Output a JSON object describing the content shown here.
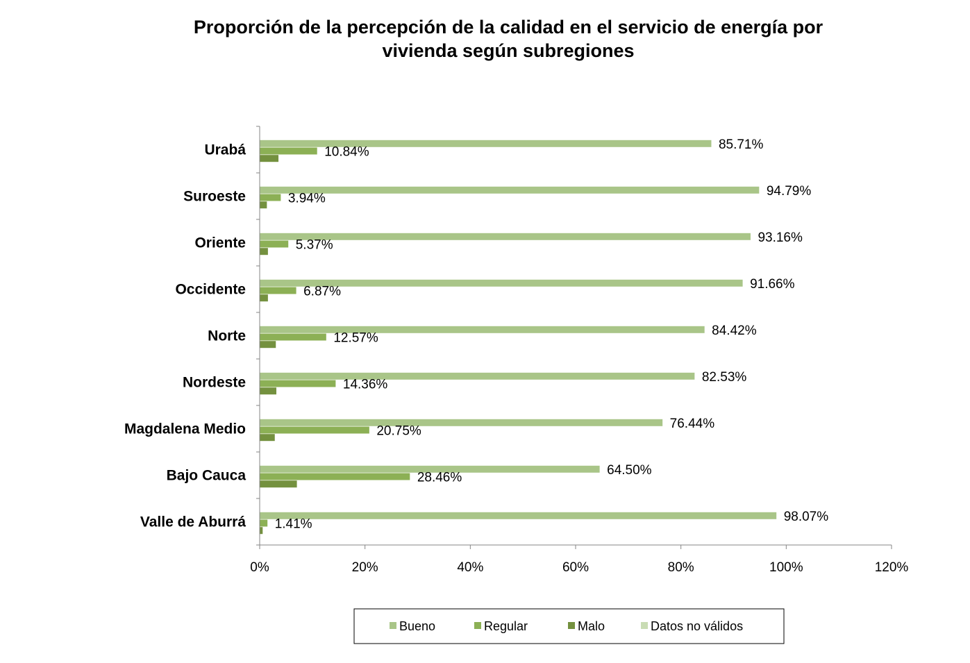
{
  "chart_data": {
    "type": "bar",
    "orientation": "horizontal",
    "title": "Proporción de la percepción de la calidad en el servicio de energía por vivienda según subregiones",
    "title_lines": [
      "Proporción de la percepción de la calidad en el servicio de energía por",
      "vivienda según subregiones"
    ],
    "categories": [
      "Urabá",
      "Suroeste",
      "Oriente",
      "Occidente",
      "Norte",
      "Nordeste",
      "Magdalena Medio",
      "Bajo Cauca",
      "Valle de Aburrá"
    ],
    "series": [
      {
        "name": "Bueno",
        "color": "#a9c588",
        "values": [
          85.71,
          94.79,
          93.16,
          91.66,
          84.42,
          82.53,
          76.44,
          64.5,
          98.07
        ],
        "labels": [
          "85.71%",
          "94.79%",
          "93.16%",
          "91.66%",
          "84.42%",
          "82.53%",
          "76.44%",
          "64.50%",
          "98.07%"
        ]
      },
      {
        "name": "Regular",
        "color": "#8cb055",
        "values": [
          10.84,
          3.94,
          5.37,
          6.87,
          12.57,
          14.36,
          20.75,
          28.46,
          1.41
        ],
        "labels": [
          "10.84%",
          "3.94%",
          "5.37%",
          "6.87%",
          "12.57%",
          "14.36%",
          "20.75%",
          "28.46%",
          "1.41%"
        ]
      },
      {
        "name": "Malo",
        "color": "#74913f",
        "values": [
          3.5,
          1.3,
          1.5,
          1.5,
          3.0,
          3.1,
          2.8,
          7.0,
          0.5
        ]
      },
      {
        "name": "Datos no válidos",
        "color": "#c9dcb4",
        "values": [
          0,
          0,
          0,
          0,
          0,
          0,
          0,
          0,
          0
        ]
      }
    ],
    "xlim": [
      0,
      120
    ],
    "xticks": [
      "0%",
      "20%",
      "40%",
      "60%",
      "80%",
      "100%",
      "120%"
    ],
    "xtick_values": [
      0,
      20,
      40,
      60,
      80,
      100,
      120
    ],
    "legend_position": "bottom",
    "grid": false
  }
}
